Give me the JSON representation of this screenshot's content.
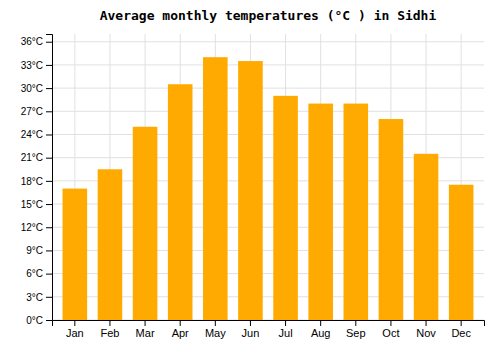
{
  "chart_data": {
    "type": "bar",
    "title": "Average monthly temperatures (°C ) in Sidhi",
    "categories": [
      "Jan",
      "Feb",
      "Mar",
      "Apr",
      "May",
      "Jun",
      "Jul",
      "Aug",
      "Sep",
      "Oct",
      "Nov",
      "Dec"
    ],
    "values": [
      17,
      19.5,
      25,
      30.5,
      34,
      33.5,
      29,
      28,
      28,
      26,
      21.5,
      17.5
    ],
    "color": "#FFAA00",
    "ylim": [
      0,
      37
    ],
    "yticks": [
      {
        "value": 0,
        "label": "0°C"
      },
      {
        "value": 3,
        "label": "3°C"
      },
      {
        "value": 6,
        "label": "6°C"
      },
      {
        "value": 9,
        "label": "9°C"
      },
      {
        "value": 12,
        "label": "12°C"
      },
      {
        "value": 15,
        "label": "15°C"
      },
      {
        "value": 18,
        "label": "18°C"
      },
      {
        "value": 21,
        "label": "21°C"
      },
      {
        "value": 24,
        "label": "24°C"
      },
      {
        "value": 27,
        "label": "27°C"
      },
      {
        "value": 30,
        "label": "30°C"
      },
      {
        "value": 33,
        "label": "33°C"
      },
      {
        "value": 36,
        "label": "36°C"
      }
    ],
    "grid": true
  }
}
